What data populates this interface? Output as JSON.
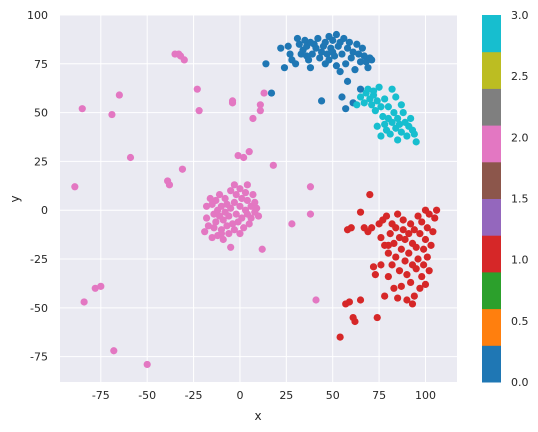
{
  "chart_data": {
    "type": "scatter",
    "xlabel": "x",
    "ylabel": "y",
    "xlim": [
      -97,
      117
    ],
    "ylim": [
      -88,
      100
    ],
    "xticks": [
      -75,
      -50,
      -25,
      0,
      25,
      50,
      75,
      100
    ],
    "yticks": [
      -75,
      -50,
      -25,
      0,
      25,
      50,
      75,
      100
    ],
    "grid": true,
    "colorbar": {
      "range": [
        0.0,
        3.0
      ],
      "ticks": [
        "0.0",
        "0.5",
        "1.0",
        "1.5",
        "2.0",
        "2.5",
        "3.0"
      ],
      "colors": [
        "#1f77b4",
        "#ff7f0e",
        "#2ca02c",
        "#d62728",
        "#9467bd",
        "#8c564b",
        "#e377c2",
        "#7f7f7f",
        "#bcbd22",
        "#17becf"
      ]
    },
    "series": [
      {
        "label_value": 0,
        "color": "#1f77b4",
        "points": [
          [
            14,
            75
          ],
          [
            17,
            60
          ],
          [
            22,
            83
          ],
          [
            24,
            73
          ],
          [
            27,
            80
          ],
          [
            28,
            77
          ],
          [
            30,
            75
          ],
          [
            31,
            88
          ],
          [
            32,
            85
          ],
          [
            33,
            80
          ],
          [
            34,
            82
          ],
          [
            35,
            87
          ],
          [
            36,
            84
          ],
          [
            37,
            77
          ],
          [
            38,
            73
          ],
          [
            38,
            86
          ],
          [
            39,
            80
          ],
          [
            40,
            85
          ],
          [
            41,
            83
          ],
          [
            42,
            88
          ],
          [
            43,
            78
          ],
          [
            44,
            81
          ],
          [
            44,
            56
          ],
          [
            45,
            84
          ],
          [
            46,
            86
          ],
          [
            47,
            80
          ],
          [
            48,
            77
          ],
          [
            48,
            89
          ],
          [
            49,
            83
          ],
          [
            50,
            81
          ],
          [
            50,
            87
          ],
          [
            51,
            79
          ],
          [
            52,
            74
          ],
          [
            52,
            90
          ],
          [
            53,
            84
          ],
          [
            54,
            86
          ],
          [
            54,
            71
          ],
          [
            55,
            80
          ],
          [
            55,
            58
          ],
          [
            56,
            88
          ],
          [
            57,
            75
          ],
          [
            57,
            52
          ],
          [
            58,
            83
          ],
          [
            59,
            86
          ],
          [
            60,
            78
          ],
          [
            61,
            81
          ],
          [
            61,
            55
          ],
          [
            62,
            72
          ],
          [
            63,
            85
          ],
          [
            64,
            80
          ],
          [
            65,
            76
          ],
          [
            65,
            62
          ],
          [
            66,
            83
          ],
          [
            67,
            79
          ],
          [
            68,
            76
          ],
          [
            69,
            73
          ],
          [
            70,
            78
          ],
          [
            71,
            77
          ],
          [
            26,
            84
          ],
          [
            36,
            79
          ],
          [
            46,
            75
          ],
          [
            58,
            66
          ]
        ]
      },
      {
        "label_value": 3,
        "color": "#17becf",
        "points": [
          [
            63,
            54
          ],
          [
            65,
            58
          ],
          [
            67,
            55
          ],
          [
            68,
            60
          ],
          [
            69,
            62
          ],
          [
            70,
            57
          ],
          [
            71,
            54
          ],
          [
            72,
            59
          ],
          [
            73,
            51
          ],
          [
            74,
            56
          ],
          [
            74,
            43
          ],
          [
            75,
            63
          ],
          [
            76,
            53
          ],
          [
            76,
            38
          ],
          [
            77,
            48
          ],
          [
            78,
            57
          ],
          [
            78,
            44
          ],
          [
            79,
            41
          ],
          [
            80,
            47
          ],
          [
            80,
            53
          ],
          [
            81,
            39
          ],
          [
            82,
            45
          ],
          [
            82,
            62
          ],
          [
            83,
            50
          ],
          [
            84,
            42
          ],
          [
            85,
            36
          ],
          [
            85,
            47
          ],
          [
            86,
            44
          ],
          [
            87,
            40
          ],
          [
            88,
            50
          ],
          [
            89,
            45
          ],
          [
            90,
            38
          ],
          [
            91,
            43
          ],
          [
            92,
            47
          ],
          [
            93,
            41
          ],
          [
            94,
            39
          ],
          [
            95,
            35
          ],
          [
            84,
            58
          ],
          [
            87,
            54
          ],
          [
            72,
            61
          ]
        ]
      },
      {
        "label_value": 1,
        "color": "#d62728",
        "points": [
          [
            54,
            -65
          ],
          [
            57,
            -48
          ],
          [
            58,
            -10
          ],
          [
            59,
            -47
          ],
          [
            60,
            -9
          ],
          [
            61,
            -55
          ],
          [
            62,
            -57
          ],
          [
            65,
            -46
          ],
          [
            67,
            -9
          ],
          [
            69,
            -11
          ],
          [
            70,
            8
          ],
          [
            71,
            -9
          ],
          [
            72,
            -29
          ],
          [
            73,
            -33
          ],
          [
            74,
            -55
          ],
          [
            75,
            -7
          ],
          [
            76,
            -14
          ],
          [
            77,
            -5
          ],
          [
            78,
            -18
          ],
          [
            78,
            -44
          ],
          [
            79,
            -3
          ],
          [
            80,
            -22
          ],
          [
            80,
            -34
          ],
          [
            81,
            -12
          ],
          [
            82,
            -28
          ],
          [
            82,
            -7
          ],
          [
            83,
            -40
          ],
          [
            83,
            -17
          ],
          [
            84,
            -9
          ],
          [
            84,
            -24
          ],
          [
            85,
            -45
          ],
          [
            85,
            -2
          ],
          [
            86,
            -14
          ],
          [
            86,
            -31
          ],
          [
            87,
            -20
          ],
          [
            87,
            -39
          ],
          [
            88,
            -10
          ],
          [
            88,
            -5
          ],
          [
            89,
            -26
          ],
          [
            89,
            -15
          ],
          [
            90,
            -33
          ],
          [
            90,
            -46
          ],
          [
            91,
            -12
          ],
          [
            91,
            -22
          ],
          [
            92,
            -7
          ],
          [
            92,
            -37
          ],
          [
            93,
            -28
          ],
          [
            93,
            -17
          ],
          [
            94,
            -44
          ],
          [
            94,
            -10
          ],
          [
            95,
            -19
          ],
          [
            95,
            -30
          ],
          [
            96,
            -3
          ],
          [
            96,
            -25
          ],
          [
            97,
            -12
          ],
          [
            97,
            -40
          ],
          [
            98,
            -34
          ],
          [
            98,
            -6
          ],
          [
            99,
            -20
          ],
          [
            99,
            -28
          ],
          [
            100,
            -15
          ],
          [
            100,
            -38
          ],
          [
            101,
            -9
          ],
          [
            101,
            -24
          ],
          [
            102,
            -2
          ],
          [
            102,
            -31
          ],
          [
            103,
            -18
          ],
          [
            104,
            -11
          ],
          [
            105,
            -4
          ],
          [
            106,
            0
          ],
          [
            100,
            0
          ],
          [
            93,
            -48
          ],
          [
            80,
            -18
          ],
          [
            76,
            -28
          ],
          [
            65,
            -1
          ]
        ]
      },
      {
        "label_value": 2,
        "color": "#e377c2",
        "points": [
          [
            -89,
            12
          ],
          [
            -85,
            52
          ],
          [
            -84,
            -47
          ],
          [
            -78,
            -40
          ],
          [
            -75,
            -39
          ],
          [
            -69,
            49
          ],
          [
            -68,
            -72
          ],
          [
            -65,
            59
          ],
          [
            -59,
            27
          ],
          [
            -50,
            -79
          ],
          [
            -39,
            15
          ],
          [
            -38,
            13
          ],
          [
            -33,
            80
          ],
          [
            -32,
            79
          ],
          [
            -31,
            21
          ],
          [
            -30,
            77
          ],
          [
            -23,
            62
          ],
          [
            -22,
            51
          ],
          [
            -19,
            -11
          ],
          [
            -18,
            -4
          ],
          [
            -18,
            2
          ],
          [
            -17,
            -8
          ],
          [
            -16,
            6
          ],
          [
            -15,
            -14
          ],
          [
            -15,
            3
          ],
          [
            -14,
            -2
          ],
          [
            -14,
            -9
          ],
          [
            -13,
            5
          ],
          [
            -13,
            -6
          ],
          [
            -12,
            0
          ],
          [
            -12,
            -13
          ],
          [
            -11,
            -3
          ],
          [
            -11,
            8
          ],
          [
            -10,
            -10
          ],
          [
            -10,
            2
          ],
          [
            -9,
            -5
          ],
          [
            -9,
            -15
          ],
          [
            -8,
            -1
          ],
          [
            -8,
            6
          ],
          [
            -7,
            -8
          ],
          [
            -7,
            3
          ],
          [
            -6,
            -12
          ],
          [
            -6,
            -3
          ],
          [
            -5,
            1
          ],
          [
            -5,
            10
          ],
          [
            -5,
            -19
          ],
          [
            -4,
            -7
          ],
          [
            -4,
            55
          ],
          [
            -3,
            4
          ],
          [
            -3,
            13
          ],
          [
            -3,
            -10
          ],
          [
            -2,
            -2
          ],
          [
            -2,
            8
          ],
          [
            -1,
            -6
          ],
          [
            -1,
            28
          ],
          [
            0,
            2
          ],
          [
            0,
            11
          ],
          [
            0,
            -12
          ],
          [
            1,
            -4
          ],
          [
            1,
            6
          ],
          [
            2,
            27
          ],
          [
            2,
            -9
          ],
          [
            3,
            0
          ],
          [
            3,
            9
          ],
          [
            4,
            -2
          ],
          [
            4,
            5
          ],
          [
            5,
            -7
          ],
          [
            5,
            30
          ],
          [
            6,
            2
          ],
          [
            6,
            -4
          ],
          [
            7,
            8
          ],
          [
            7,
            47
          ],
          [
            8,
            -1
          ],
          [
            8,
            4
          ],
          [
            9,
            1
          ],
          [
            10,
            -3
          ],
          [
            11,
            54
          ],
          [
            11,
            51
          ],
          [
            13,
            60
          ],
          [
            12,
            -20
          ],
          [
            18,
            23
          ],
          [
            28,
            -7
          ],
          [
            38,
            -2
          ],
          [
            38,
            12
          ],
          [
            41,
            -46
          ],
          [
            -4,
            56
          ],
          [
            -35,
            80
          ],
          [
            -10,
            -12
          ],
          [
            4,
            13
          ]
        ]
      }
    ]
  }
}
